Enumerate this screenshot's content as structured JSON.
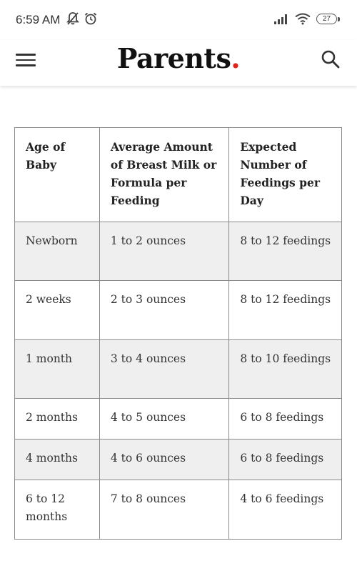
{
  "status_bar": {
    "time": "6:59 AM",
    "battery": "27",
    "icons": [
      "mute-icon",
      "alarm-icon",
      "signal-icon",
      "wifi-icon",
      "battery-icon"
    ]
  },
  "header": {
    "logo": "Parents",
    "logo_dot": ".",
    "icons": [
      "menu-icon",
      "search-icon"
    ],
    "accent_color": "#e2231a"
  },
  "table": {
    "headers": [
      "Age of Baby",
      "Average Amount of Breast Milk or Formula per Feeding",
      "Expected Number of Feedings per Day"
    ],
    "rows": [
      [
        "Newborn",
        "1 to 2 ounces",
        "8 to 12 feedings"
      ],
      [
        "2 weeks",
        "2 to 3 ounces",
        "8 to 12 feedings"
      ],
      [
        "1 month",
        "3 to 4 ounces",
        "8 to 10 feedings"
      ],
      [
        "2 months",
        "4 to 5 ounces",
        "6 to 8 feedings"
      ],
      [
        "4 months",
        "4 to 6 ounces",
        "6 to 8 feedings"
      ],
      [
        "6 to 12 months",
        "7 to 8 ounces",
        "4 to 6 feedings"
      ]
    ],
    "shaded_row_color": "#efefef"
  }
}
